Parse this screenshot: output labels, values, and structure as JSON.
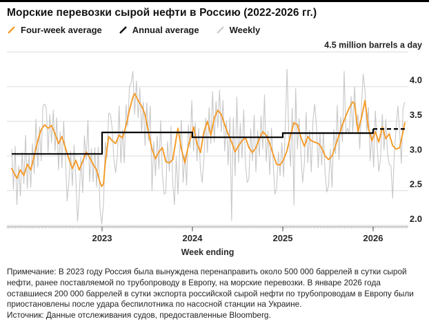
{
  "title": "Морские перевозки сырой нефти в Россию (2022-2026 гг.)",
  "legend": {
    "items": [
      {
        "label": "Four-week average",
        "color": "#F49C2D"
      },
      {
        "label": "Annual average",
        "color": "#000000"
      },
      {
        "label": "Weekly",
        "color": "#C7C7C7"
      }
    ]
  },
  "chart_data": {
    "type": "line",
    "title": "Морские перевозки сырой нефти в Россию (2022-2026 гг.)",
    "unit_label": "4.5 million barrels a day",
    "xlabel": "Week ending",
    "ylabel": "million barrels a day",
    "x_ticks": [
      2023,
      2024,
      2025,
      2026
    ],
    "y_ticks": [
      4.0,
      3.5,
      3.0,
      2.5,
      2.0
    ],
    "y_top": 4.5,
    "ylim": [
      2.0,
      4.5
    ],
    "xlim": [
      2021.95,
      2026.45
    ],
    "grid": true,
    "legend_position": "top",
    "start_year": 2022,
    "weeks_per_year": 52.18,
    "series": [
      {
        "name": "Weekly",
        "color": "#C7C7C7",
        "width": 1.1,
        "weekly_values": [
          3.1,
          2.52,
          3.14,
          2.3,
          2.86,
          2.42,
          3.06,
          2.6,
          3.3,
          2.53,
          3.02,
          2.55,
          3.18,
          2.75,
          3.53,
          2.84,
          3.42,
          2.93,
          3.72,
          3.75,
          3.68,
          3.05,
          3.6,
          3.19,
          3.66,
          3.07,
          3.55,
          2.8,
          3.35,
          2.83,
          3.5,
          3.0,
          2.35,
          2.61,
          3.07,
          2.57,
          3.16,
          2.69,
          2.06,
          2.42,
          2.98,
          2.47,
          3.29,
          2.94,
          3.52,
          2.63,
          3.11,
          2.63,
          3.12,
          2.55,
          3.13,
          2.24,
          2.02,
          2.3,
          3.2,
          2.98,
          3.62,
          3.6,
          3.4,
          2.95,
          2.76,
          2.99,
          3.72,
          2.9,
          3.38,
          2.9,
          3.74,
          3.43,
          4.0,
          4.05,
          4.22,
          3.6,
          4.08,
          3.55,
          3.98,
          3.34,
          3.78,
          3.15,
          3.77,
          3.22,
          3.72,
          2.5,
          3.21,
          2.71,
          3.29,
          2.81,
          3.51,
          2.74,
          2.45,
          2.47,
          3.21,
          2.78,
          3.43,
          2.6,
          2.3,
          3.0,
          2.45,
          3.08,
          3.52,
          2.62,
          3.02,
          2.58,
          3.45,
          3.12,
          3.8,
          3.07,
          3.48,
          2.93,
          3.4,
          2.8,
          2.62,
          2.97,
          3.55,
          3.05,
          3.7,
          3.18,
          3.93,
          3.2,
          3.79,
          3.41,
          3.95,
          3.35,
          3.8,
          3.07,
          3.51,
          2.87,
          3.56,
          2.07,
          3.55,
          2.71,
          3.85,
          2.9,
          3.47,
          2.97,
          3.67,
          2.89,
          2.62,
          2.67,
          3.39,
          2.93,
          3.59,
          2.77,
          3.37,
          3.0,
          3.58,
          3.1,
          3.88,
          2.92,
          3.36,
          2.73,
          3.4,
          2.9,
          2.45,
          2.53,
          3.06,
          2.72,
          3.19,
          2.7,
          3.44,
          4.25,
          3.31,
          2.85,
          3.69,
          2.29,
          3.97,
          3.1,
          3.54,
          3.02,
          2.62,
          2.89,
          3.63,
          2.9,
          3.37,
          2.77,
          3.51,
          3.75,
          3.42,
          2.83,
          3.33,
          2.87,
          3.34,
          2.75,
          2.48,
          2.57,
          3.1,
          2.55,
          3.38,
          3.03,
          3.73,
          2.95,
          3.56,
          3.2,
          4.22,
          3.33,
          3.4,
          3.32,
          3.86,
          3.33,
          4.0,
          3.44,
          3.6,
          3.1,
          3.73,
          4.18,
          3.95,
          3.35,
          3.7,
          2.93,
          3.34,
          2.84,
          3.65,
          3.16,
          2.78,
          2.96,
          3.6,
          3.09,
          3.53,
          3.04,
          2.88,
          2.86,
          2.39,
          3.05,
          3.4,
          3.72,
          3.35,
          2.89,
          3.7,
          3.78
        ]
      },
      {
        "name": "Four-week average",
        "color": "#F49C2D",
        "width": 2,
        "keypoints_w": [
          0,
          2,
          3,
          5,
          7,
          9,
          11,
          13,
          15,
          17,
          19,
          21,
          23,
          25,
          27,
          29,
          31,
          33,
          35,
          37,
          39,
          41,
          43,
          45,
          47,
          49,
          51,
          52,
          53,
          54,
          55,
          56,
          58,
          60,
          62,
          64,
          66,
          68,
          70,
          71,
          73,
          75,
          77,
          79,
          81,
          83,
          85,
          87,
          89,
          91,
          93,
          95,
          96,
          98,
          100,
          102,
          104,
          105,
          107,
          109,
          111,
          113,
          115,
          117,
          119,
          121,
          123,
          125,
          127,
          129,
          131,
          133,
          135,
          137,
          139,
          141,
          143,
          145,
          147,
          149,
          151,
          153,
          155,
          157,
          159,
          161,
          163,
          165,
          167,
          169,
          171,
          173,
          175,
          177,
          179,
          181,
          183,
          185,
          187,
          189,
          191,
          193,
          195,
          197,
          198,
          200,
          202,
          204,
          206,
          208,
          210,
          212,
          214,
          216,
          218,
          220,
          222,
          224,
          226,
          227
        ],
        "keypoints_v": [
          2.82,
          2.72,
          2.68,
          2.8,
          2.72,
          2.88,
          2.8,
          3.0,
          3.22,
          3.38,
          3.45,
          3.4,
          3.44,
          3.32,
          3.18,
          3.28,
          3.12,
          2.96,
          2.82,
          2.94,
          2.8,
          2.92,
          3.06,
          2.98,
          2.88,
          2.8,
          2.62,
          2.56,
          2.6,
          2.9,
          3.1,
          3.28,
          3.22,
          3.18,
          3.3,
          3.26,
          3.44,
          3.66,
          3.85,
          3.9,
          3.8,
          3.72,
          3.6,
          3.34,
          3.1,
          2.96,
          3.06,
          3.12,
          2.92,
          2.9,
          2.95,
          3.25,
          3.4,
          3.1,
          2.9,
          3.15,
          3.32,
          3.42,
          3.18,
          3.05,
          3.35,
          3.5,
          3.3,
          3.55,
          3.66,
          3.6,
          3.45,
          3.32,
          3.2,
          3.06,
          3.15,
          3.22,
          3.27,
          3.12,
          3.05,
          3.12,
          3.25,
          3.35,
          3.3,
          3.18,
          3.02,
          2.88,
          2.87,
          2.95,
          3.08,
          3.3,
          3.48,
          3.45,
          3.27,
          3.14,
          3.28,
          3.22,
          3.2,
          3.18,
          3.12,
          3.0,
          2.95,
          3.0,
          3.15,
          3.3,
          3.45,
          3.58,
          3.7,
          3.78,
          3.76,
          3.35,
          3.55,
          3.8,
          3.4,
          3.22,
          3.35,
          3.2,
          3.42,
          3.25,
          3.32,
          3.15,
          3.1,
          3.12,
          3.35,
          3.48
        ]
      },
      {
        "name": "Annual average",
        "color": "#000000",
        "width": 2.2,
        "annual": [
          {
            "year": 2022,
            "value": 3.03,
            "dashed": false
          },
          {
            "year": 2023,
            "value": 3.34,
            "dashed": false
          },
          {
            "year": 2024,
            "value": 3.27,
            "dashed": false
          },
          {
            "year": 2025,
            "value": 3.33,
            "dashed": false
          },
          {
            "year": 2026,
            "value": 3.39,
            "dashed": true
          }
        ]
      }
    ]
  },
  "footnote": {
    "note": "Примечание: В 2023 году Россия была вынуждена перенаправить около 500 000 баррелей в сутки сырой нефти, ранее поставляемой по трубопроводу в Европу, на морские перевозки. В январе 2026 года оставшиеся 200 000 баррелей в сутки экспорта российской сырой нефти по трубопроводам в Европу были приостановлены после удара беспилотника по насосной станции на Украине.",
    "source": "Источник: Данные отслеживания судов, предоставленные Bloomberg."
  }
}
